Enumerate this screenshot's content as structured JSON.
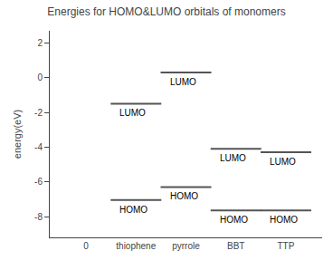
{
  "chart_data": {
    "type": "level",
    "title": "Energies for HOMO&LUMO orbitals of monomers",
    "ylabel": "energy(eV)",
    "categories": [
      "0",
      "thiophene",
      "pyrrole",
      "BBT",
      "TTP"
    ],
    "series": [
      {
        "name": "LUMO",
        "values": [
          null,
          -1.5,
          0.3,
          -4.1,
          -4.3
        ]
      },
      {
        "name": "HOMO",
        "values": [
          null,
          -7.05,
          -6.3,
          -7.65,
          -7.65
        ]
      }
    ],
    "color": "#555555",
    "ylim": [
      -9.2,
      2.7
    ],
    "yticks": [
      -8,
      -6,
      -4,
      -2,
      0,
      2
    ],
    "grid": false
  }
}
